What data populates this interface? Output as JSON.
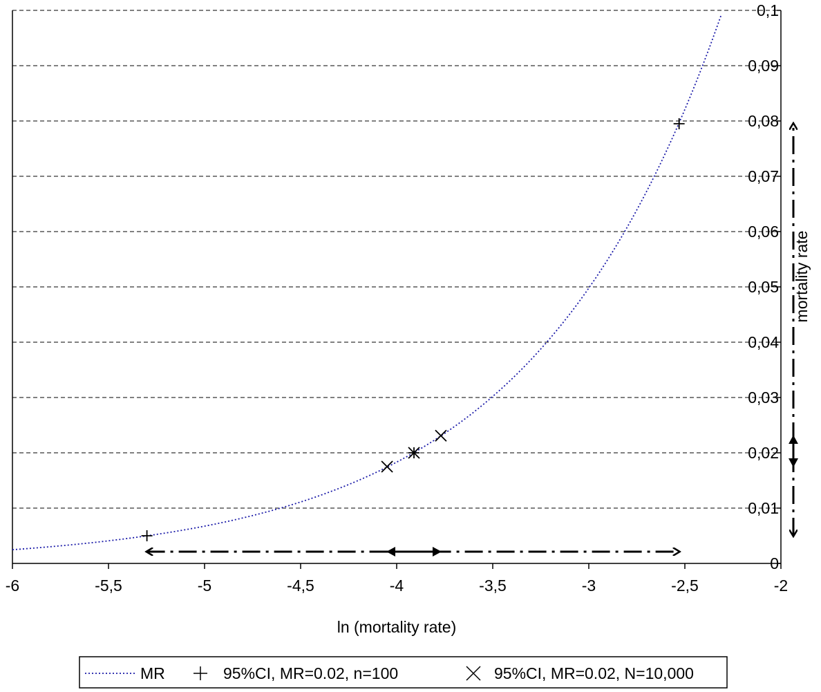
{
  "chart_data": {
    "type": "scatter",
    "title": "",
    "xlabel": "ln (mortality rate)",
    "ylabel": "mortality rate",
    "x_axis": {
      "min": -6,
      "max": -2,
      "ticks": [
        -6,
        -5.5,
        -5,
        -4.5,
        -4,
        -3.5,
        -3,
        -2.5,
        -2
      ],
      "tick_labels": [
        "-6",
        "-5,5",
        "-5",
        "-4,5",
        "-4",
        "-3,5",
        "-3",
        "-2,5",
        "-2"
      ]
    },
    "y_axis": {
      "position": "right",
      "min": 0,
      "max": 0.1,
      "ticks": [
        0,
        0.01,
        0.02,
        0.03,
        0.04,
        0.05,
        0.06,
        0.07,
        0.08,
        0.09,
        0.1
      ],
      "tick_labels": [
        "0",
        "0,01",
        "0,02",
        "0,03",
        "0,04",
        "0,05",
        "0,06",
        "0,07",
        "0,08",
        "0,09",
        "0,1"
      ],
      "grid": "dashed"
    },
    "series": [
      {
        "name": "MR",
        "style": "dotted-line",
        "color": "#1a1aa8",
        "function": "exp(x)",
        "x_range": [
          -6,
          -2.3
        ]
      },
      {
        "name": "95%CI, MR=0.02, n=100",
        "marker": "plus",
        "color": "#000000",
        "points": [
          {
            "x": -5.3,
            "y": 0.005
          },
          {
            "x": -3.91,
            "y": 0.02
          },
          {
            "x": -2.53,
            "y": 0.0795
          }
        ]
      },
      {
        "name": "95%CI, MR=0.02, N=10,000",
        "marker": "x",
        "color": "#000000",
        "points": [
          {
            "x": -4.05,
            "y": 0.0175
          },
          {
            "x": -3.91,
            "y": 0.02
          },
          {
            "x": -3.77,
            "y": 0.0231
          }
        ]
      }
    ],
    "interval_arrows": {
      "horizontal_wide": {
        "axis": "x",
        "from": -5.3,
        "to": -2.53,
        "style": "dash-dot"
      },
      "horizontal_narrow": {
        "axis": "x",
        "from": -4.05,
        "to": -3.77,
        "style": "solid"
      },
      "vertical_wide": {
        "axis": "y",
        "from": 0.005,
        "to": 0.0795,
        "style": "dash-dot"
      },
      "vertical_narrow": {
        "axis": "y",
        "from": 0.0175,
        "to": 0.0231,
        "style": "solid"
      }
    },
    "legend": {
      "position": "bottom",
      "entries": [
        "MR",
        "95%CI, MR=0.02, n=100",
        "95%CI, MR=0.02, N=10,000"
      ]
    },
    "grid": true
  }
}
